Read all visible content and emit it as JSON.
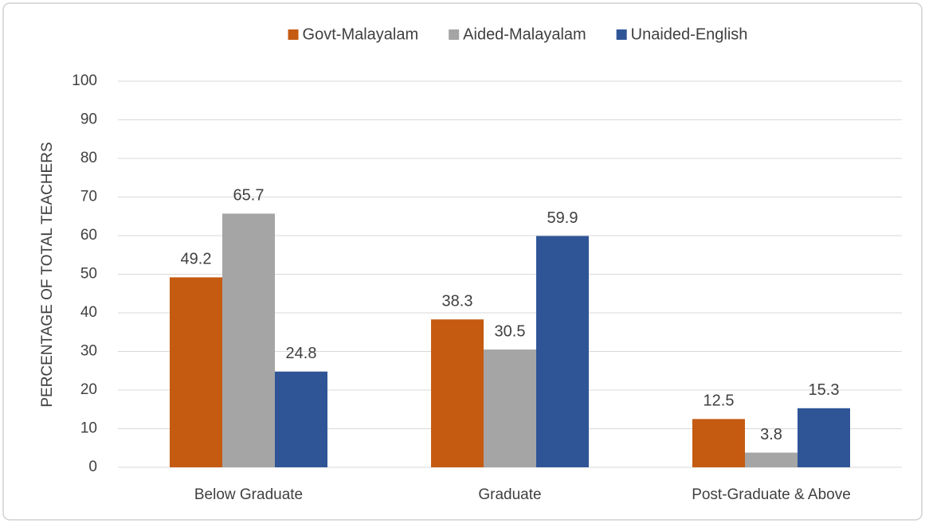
{
  "chart_data": {
    "type": "bar",
    "y_axis_label": "PERCENTAGE OF TOTAL TEACHERS",
    "categories": [
      "Below Graduate",
      "Graduate",
      "Post-Graduate & Above"
    ],
    "series": [
      {
        "name": "Govt-Malayalam",
        "color": "#c55a11",
        "values": [
          49.2,
          38.3,
          12.5
        ]
      },
      {
        "name": "Aided-Malayalam",
        "color": "#a5a5a5",
        "values": [
          65.7,
          30.5,
          3.8
        ]
      },
      {
        "name": "Unaided-English",
        "color": "#2f5597",
        "values": [
          24.8,
          59.9,
          15.3
        ]
      }
    ],
    "ylim": [
      0,
      100
    ],
    "yticks": [
      0,
      10,
      20,
      30,
      40,
      50,
      60,
      70,
      80,
      90,
      100
    ],
    "grid": true,
    "legend": "top"
  }
}
